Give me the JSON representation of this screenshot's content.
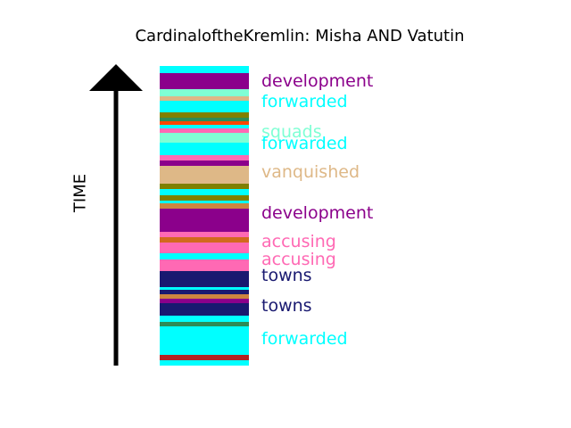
{
  "title": "CardinaloftheKremlin: Misha AND Vatutin",
  "axis_label": "TIME",
  "bands": [
    {
      "color": "#00ffff",
      "weight": 8
    },
    {
      "color": "#8b008b",
      "weight": 18
    },
    {
      "color": "#7fffd4",
      "weight": 8
    },
    {
      "color": "#deb887",
      "weight": 5
    },
    {
      "color": "#00ffff",
      "weight": 13
    },
    {
      "color": "#808000",
      "weight": 6
    },
    {
      "color": "#2e8b57",
      "weight": 4
    },
    {
      "color": "#ff4500",
      "weight": 4
    },
    {
      "color": "#00ffff",
      "weight": 4
    },
    {
      "color": "#ff69b4",
      "weight": 5
    },
    {
      "color": "#7fffd4",
      "weight": 12
    },
    {
      "color": "#00ffff",
      "weight": 14
    },
    {
      "color": "#ff69b4",
      "weight": 6
    },
    {
      "color": "#8b008b",
      "weight": 6
    },
    {
      "color": "#deb887",
      "weight": 20
    },
    {
      "color": "#808000",
      "weight": 6
    },
    {
      "color": "#00ffff",
      "weight": 7
    },
    {
      "color": "#808000",
      "weight": 6
    },
    {
      "color": "#00ffff",
      "weight": 3
    },
    {
      "color": "#cd853f",
      "weight": 6
    },
    {
      "color": "#8b008b",
      "weight": 26
    },
    {
      "color": "#ff69b4",
      "weight": 6
    },
    {
      "color": "#d2691e",
      "weight": 6
    },
    {
      "color": "#ff69b4",
      "weight": 12
    },
    {
      "color": "#00ffff",
      "weight": 7
    },
    {
      "color": "#ff69b4",
      "weight": 13
    },
    {
      "color": "#191970",
      "weight": 18
    },
    {
      "color": "#00ffff",
      "weight": 3
    },
    {
      "color": "#191970",
      "weight": 6
    },
    {
      "color": "#cd853f",
      "weight": 5
    },
    {
      "color": "#8b008b",
      "weight": 5
    },
    {
      "color": "#191970",
      "weight": 14
    },
    {
      "color": "#00ffff",
      "weight": 7
    },
    {
      "color": "#2e8b57",
      "weight": 5
    },
    {
      "color": "#00ffff",
      "weight": 32
    },
    {
      "color": "#b22222",
      "weight": 6
    },
    {
      "color": "#00ffff",
      "weight": 6
    }
  ],
  "labels": [
    {
      "text": "development",
      "color": "#8b008b",
      "position": 0.05
    },
    {
      "text": "forwarded",
      "color": "#00ffff",
      "position": 0.12
    },
    {
      "text": "squads",
      "color": "#7fffd4",
      "position": 0.22
    },
    {
      "text": "forwarded",
      "color": "#00ffff",
      "position": 0.26
    },
    {
      "text": "vanquished",
      "color": "#deb887",
      "position": 0.355
    },
    {
      "text": "development",
      "color": "#8b008b",
      "position": 0.49
    },
    {
      "text": "accusing",
      "color": "#ff69b4",
      "position": 0.585
    },
    {
      "text": "accusing",
      "color": "#ff69b4",
      "position": 0.645
    },
    {
      "text": "towns",
      "color": "#191970",
      "position": 0.7
    },
    {
      "text": "towns",
      "color": "#191970",
      "position": 0.8
    },
    {
      "text": "forwarded",
      "color": "#00ffff",
      "position": 0.91
    }
  ]
}
